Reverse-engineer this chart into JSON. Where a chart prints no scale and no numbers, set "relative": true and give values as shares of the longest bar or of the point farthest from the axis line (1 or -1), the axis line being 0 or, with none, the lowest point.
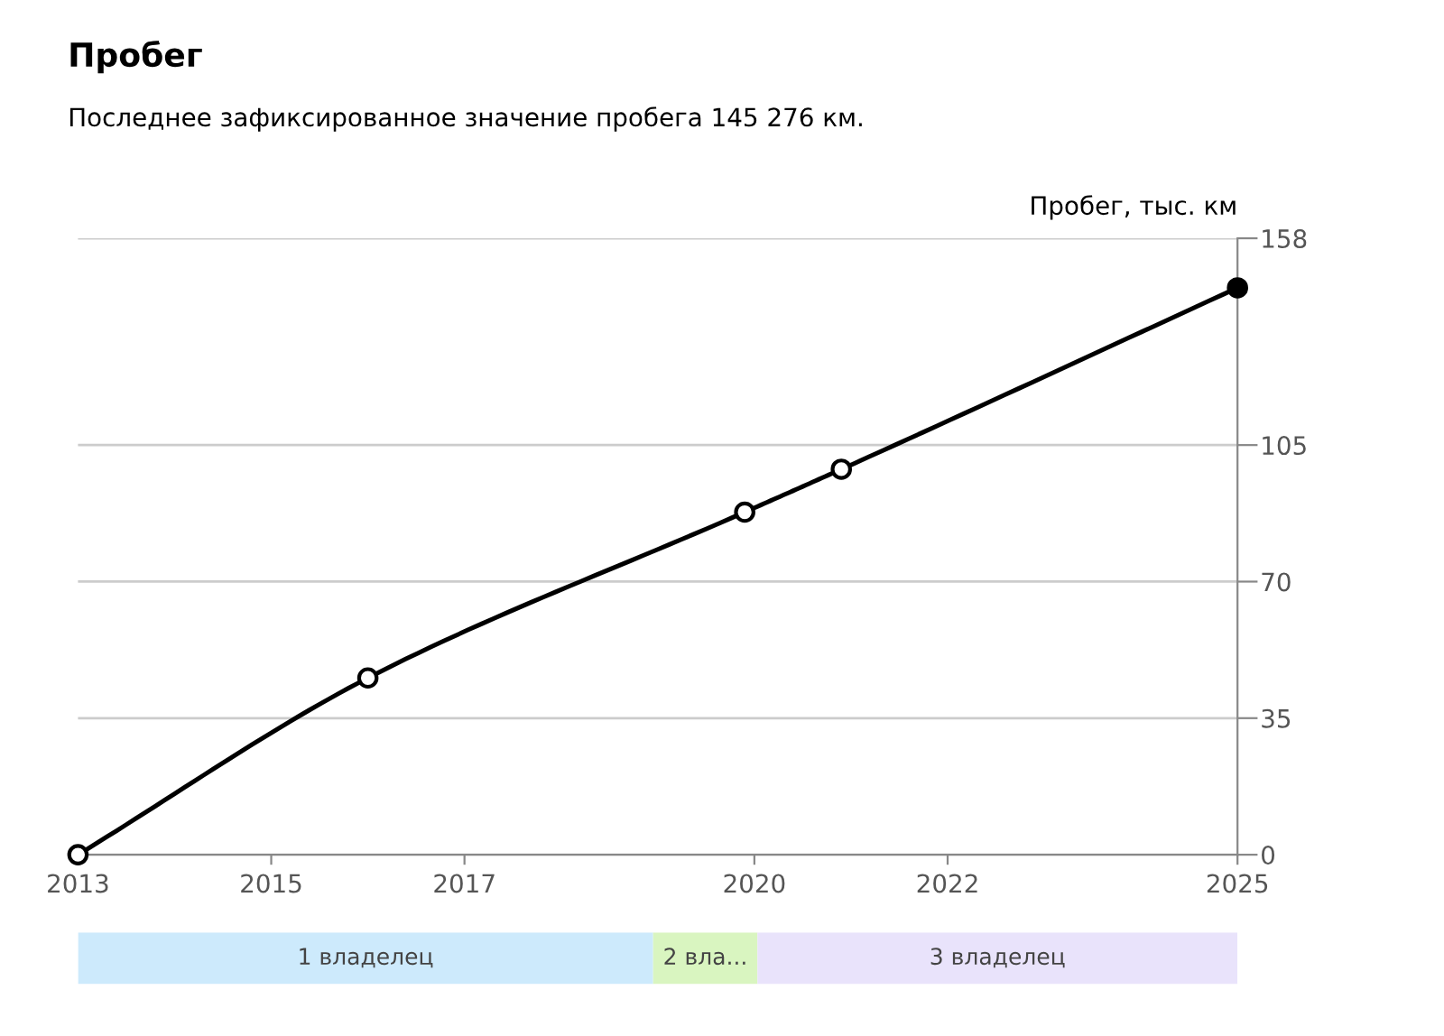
{
  "chart_data": [
    {
      "type": "line",
      "title": "Пробег",
      "subtitle": "Последнее зафиксированное значение пробега 145 276 км.",
      "ylabel": "Пробег, тыс. км",
      "x": [
        2013,
        2016.0,
        2019.9,
        2020.9,
        2025
      ],
      "series": [
        {
          "color": "#000000",
          "colors": [
            "#ffffff",
            "#ffffff",
            "#ffffff",
            "#ffffff",
            "#000000"
          ],
          "values": [
            0,
            45.3,
            87.8,
            98.8,
            145.3
          ]
        }
      ],
      "xlim": [
        2013,
        2025
      ],
      "xticks": [
        2013,
        2015,
        2017,
        2020,
        2022,
        2025
      ],
      "ylim": [
        0,
        158
      ],
      "yticks": [
        0,
        35,
        70,
        105,
        158
      ],
      "grid": "y",
      "marker": "circle",
      "line_style": "solid"
    },
    {
      "type": "bar",
      "orientation": "horizontal",
      "stacked": true,
      "relative": true,
      "categories": [
        null
      ],
      "series": [
        {
          "name": "1 владелец",
          "color": "#cdeafc",
          "values": [
            0.496
          ]
        },
        {
          "name": "2 вла...",
          "color": "#d9f5c0",
          "values": [
            0.09
          ]
        },
        {
          "name": "3 владелец",
          "color": "#e9e3fb",
          "values": [
            0.414
          ]
        }
      ],
      "tick_labels": false
    }
  ]
}
